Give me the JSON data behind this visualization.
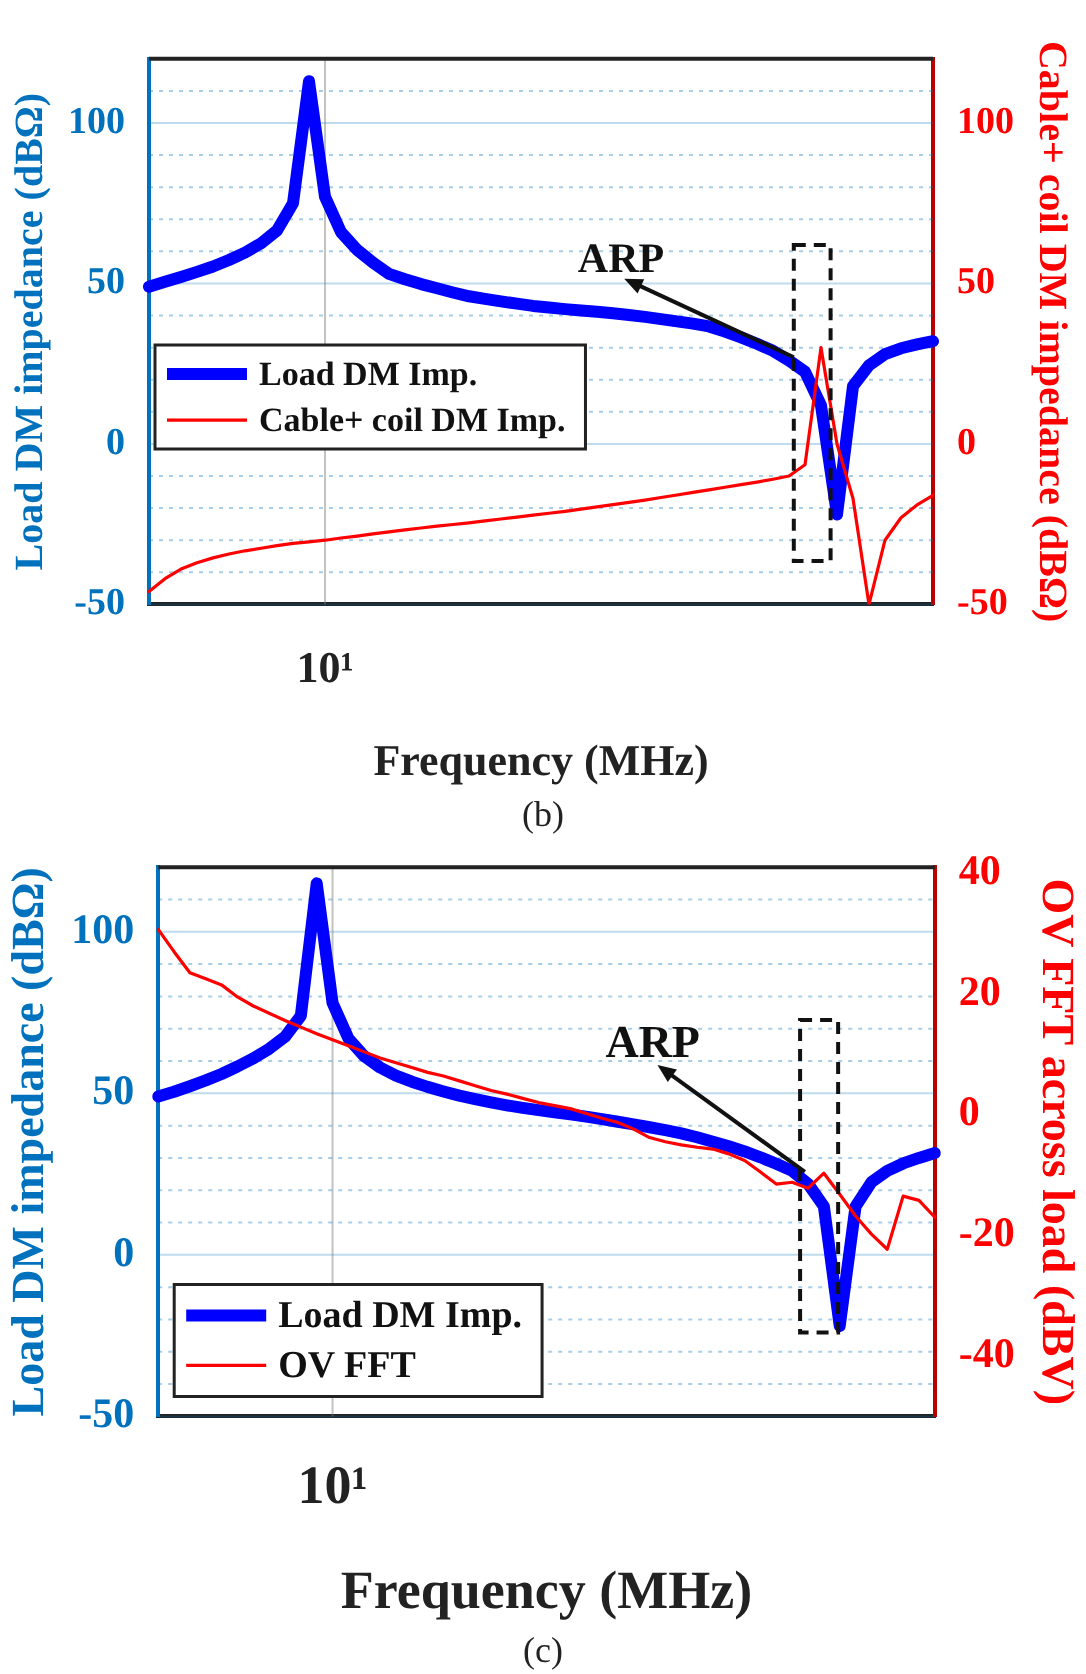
{
  "chart_data": [
    {
      "type": "line",
      "xlabel": "Frequency (MHz)",
      "ylabel": "Load DM impedance (dBΩ)",
      "y2label": "Cable+ coil DM impedance (dBΩ)",
      "grid": true,
      "legend": "left",
      "categories": [
        null,
        null,
        null,
        null,
        null,
        null,
        null,
        null,
        null,
        null,
        null,
        "10¹",
        null,
        null,
        null,
        null,
        null,
        null,
        null,
        null,
        null,
        null,
        null,
        null,
        null,
        null,
        null,
        null,
        null,
        null,
        null,
        null,
        null,
        null,
        null,
        null,
        null,
        null,
        null,
        null,
        null,
        null,
        null,
        null,
        null,
        null,
        null,
        null,
        null,
        null
      ],
      "ylim": [
        -50,
        120
      ],
      "yticks": [
        -50,
        {
          "value": -40,
          "label": null
        },
        {
          "value": -30,
          "label": null
        },
        {
          "value": -20,
          "label": null
        },
        {
          "value": -10,
          "label": null
        },
        0,
        {
          "value": 10,
          "label": null
        },
        {
          "value": 20,
          "label": null
        },
        {
          "value": 30,
          "label": null
        },
        {
          "value": 40,
          "label": null
        },
        50,
        {
          "value": 60,
          "label": null
        },
        {
          "value": 70,
          "label": null
        },
        {
          "value": 80,
          "label": null
        },
        {
          "value": 90,
          "label": null
        },
        100,
        {
          "value": 110,
          "label": null
        }
      ],
      "y2lim": [
        -50,
        120
      ],
      "y2ticks": [
        -50,
        0,
        50,
        100
      ],
      "series": [
        {
          "name": "Load DM Imp.",
          "color": "#0000ff",
          "axis": "y",
          "values": [
            49,
            50.5,
            52,
            53.6,
            55.3,
            57.3,
            59.6,
            62.5,
            66.5,
            75,
            113,
            77,
            66,
            60.5,
            56.5,
            53,
            51.3,
            49.8,
            48.5,
            47.2,
            46,
            45.2,
            44.4,
            43.7,
            43,
            42.5,
            42,
            41.6,
            41.2,
            40.7,
            40.2,
            39.6,
            38.9,
            38.2,
            37.5,
            36.6,
            35,
            33.2,
            31.2,
            29,
            26,
            22.5,
            12,
            -22,
            18,
            24.5,
            28,
            29.8,
            31,
            32
          ]
        },
        {
          "name": "Cable+ coil DM Imp.",
          "color": "#ff0000",
          "axis": "y2",
          "values": [
            -46,
            -42,
            -39,
            -37,
            -35.5,
            -34.3,
            -33.3,
            -32.5,
            -31.7,
            -31,
            -30.5,
            -30,
            -29.3,
            -28.7,
            -28,
            -27.4,
            -26.8,
            -26.2,
            -25.6,
            -25.1,
            -24.6,
            -24,
            -23.4,
            -22.8,
            -22.2,
            -21.6,
            -21,
            -20.3,
            -19.6,
            -18.9,
            -18.2,
            -17.5,
            -16.7,
            -15.9,
            -15.1,
            -14.3,
            -13.5,
            -12.7,
            -11.9,
            -11,
            -10,
            -6.5,
            30,
            0,
            -17,
            -50,
            -30,
            -23,
            -19,
            -16
          ]
        }
      ],
      "annotations": [
        "ARP",
        "(b)"
      ]
    },
    {
      "type": "line",
      "xlabel": "Frequency (MHz)",
      "ylabel": "Load DM impedance (dBΩ)",
      "y2label": "OV FFT across load (dBV)",
      "grid": true,
      "legend": "bottom left",
      "categories": [
        null,
        null,
        null,
        null,
        null,
        null,
        null,
        null,
        null,
        null,
        null,
        "10¹",
        null,
        null,
        null,
        null,
        null,
        null,
        null,
        null,
        null,
        null,
        null,
        null,
        null,
        null,
        null,
        null,
        null,
        null,
        null,
        null,
        null,
        null,
        null,
        null,
        null,
        null,
        null,
        null,
        null,
        null,
        null,
        null,
        null,
        null,
        null,
        null,
        null,
        null
      ],
      "ylim": [
        -50,
        120
      ],
      "yticks": [
        -50,
        {
          "value": -40,
          "label": null
        },
        {
          "value": -30,
          "label": null
        },
        {
          "value": -20,
          "label": null
        },
        {
          "value": -10,
          "label": null
        },
        0,
        {
          "value": 10,
          "label": null
        },
        {
          "value": 20,
          "label": null
        },
        {
          "value": 30,
          "label": null
        },
        {
          "value": 40,
          "label": null
        },
        50,
        {
          "value": 60,
          "label": null
        },
        {
          "value": 70,
          "label": null
        },
        {
          "value": 80,
          "label": null
        },
        {
          "value": 90,
          "label": null
        },
        100,
        {
          "value": 110,
          "label": null
        }
      ],
      "y2lim": [
        -50,
        41
      ],
      "y2ticks": [
        -40,
        -20,
        0,
        20,
        40
      ],
      "series": [
        {
          "name": "Load DM Imp.",
          "color": "#0000ff",
          "axis": "y",
          "values": [
            49,
            50.5,
            52.2,
            54,
            56,
            58.3,
            60.8,
            63.8,
            67.5,
            74,
            115,
            78,
            67,
            61.5,
            58,
            55.5,
            53.6,
            52,
            50.6,
            49.3,
            48.2,
            47.2,
            46.3,
            45.5,
            44.8,
            44.1,
            43.5,
            42.8,
            42,
            41.2,
            40.4,
            39.5,
            38.6,
            37.6,
            36.4,
            35,
            33.6,
            32,
            30.2,
            28.2,
            26,
            22,
            15,
            -22,
            15,
            22.5,
            26,
            28.3,
            30,
            31.5
          ]
        },
        {
          "name": "OV FFT",
          "color": "#ff0000",
          "axis": "y2",
          "values": [
            30.7,
            27,
            23.5,
            22.5,
            21.5,
            19.5,
            18,
            16.8,
            15.6,
            14.5,
            13.4,
            12.4,
            11.4,
            10.4,
            9.4,
            8.6,
            7.8,
            7,
            6.4,
            5.6,
            4.8,
            4,
            3.4,
            2.7,
            2,
            1.5,
            1,
            0.2,
            -0.6,
            -1.3,
            -2.4,
            -3.8,
            -4.5,
            -5,
            -5.4,
            -5.7,
            -6.5,
            -7.6,
            -9.5,
            -11.5,
            -11.2,
            -12.2,
            -9.7,
            -13.2,
            -16.8,
            -19.8,
            -22.3,
            -13.5,
            -14.2,
            -17
          ]
        }
      ],
      "annotations": [
        "ARP",
        "(c)"
      ]
    }
  ]
}
